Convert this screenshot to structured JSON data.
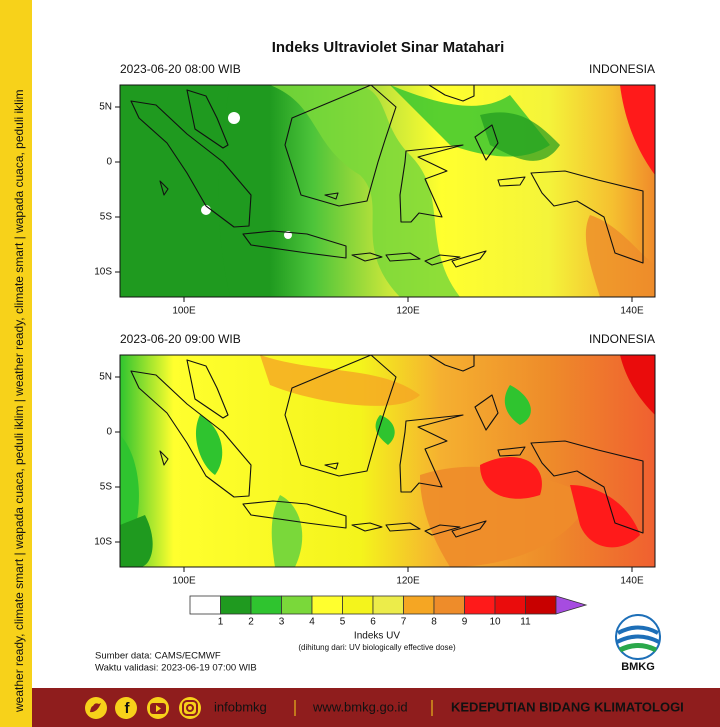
{
  "header": {
    "title": "Indeks Ultraviolet Sinar Matahari"
  },
  "panels": [
    {
      "time_label": "2023-06-20  08:00 WIB",
      "region": "INDONESIA"
    },
    {
      "time_label": "2023-06-20  09:00 WIB",
      "region": "INDONESIA"
    }
  ],
  "lat_labels": [
    "5N",
    "0",
    "5S",
    "10S"
  ],
  "lon_labels": [
    "100E",
    "120E",
    "140E"
  ],
  "colorbar": {
    "labels": [
      1,
      2,
      3,
      4,
      5,
      6,
      7,
      8,
      9,
      10,
      11
    ],
    "colors": [
      "#ffffff",
      "#1f9a1f",
      "#2fc42f",
      "#7ad83a",
      "#ffff2e",
      "#f4f41c",
      "#ecec4a",
      "#f5a623",
      "#ee8c2a",
      "#ff1a1a",
      "#ea0c0c",
      "#c80000",
      "#a64ce0"
    ],
    "title": "Indeks UV",
    "subtitle": "(dihitung dari: UV biologically effective dose)"
  },
  "source": "Sumber data: CAMS/ECMWF",
  "validity": "Waktu validasi: 2023-06-19 07:00 WIB",
  "logo": "BMKG",
  "side_text": "weather ready, climate smart  |  wapada cuaca, peduli iklim  |  weather ready, climate smart  |  wapada cuaca, peduli iklim",
  "footer": {
    "social": "infobmkg",
    "website": "www.bmkg.go.id",
    "unit": "KEDEPUTIAN BIDANG KLIMATOLOGI"
  }
}
